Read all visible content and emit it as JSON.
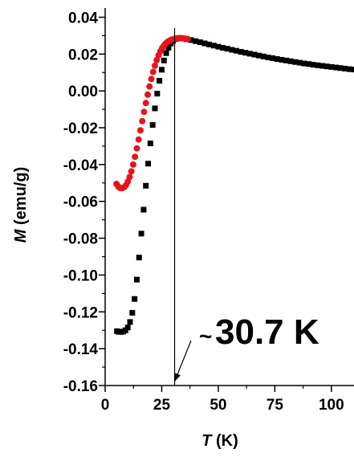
{
  "chart_data": {
    "type": "scatter",
    "xlabel": {
      "symbol": "T",
      "unit": " (K)"
    },
    "ylabel": {
      "symbol": "M",
      "unit": " (emu/g)"
    },
    "xlim": [
      0,
      110
    ],
    "ylim": [
      -0.16,
      0.045
    ],
    "x_ticks": [
      0,
      25,
      50,
      75,
      100
    ],
    "x_tick_labels": [
      "0",
      "25",
      "50",
      "75",
      "100"
    ],
    "y_ticks": [
      0.04,
      0.02,
      0.0,
      -0.02,
      -0.04,
      -0.06,
      -0.08,
      -0.1,
      -0.12,
      -0.14,
      -0.16
    ],
    "y_tick_labels": [
      "0.04",
      "0.02",
      "0.00",
      "-0.02",
      "-0.04",
      "-0.06",
      "-0.08",
      "-0.10",
      "-0.12",
      "-0.14",
      "-0.16"
    ],
    "grid": false,
    "legend": "none",
    "annotations": [
      {
        "text": "~30.7 K",
        "points_to_x": 30.7
      }
    ],
    "vline_x": 30.7,
    "series": [
      {
        "marker": "square",
        "color": "#000000",
        "points": [
          [
            5.2,
            -0.1305
          ],
          [
            6.0,
            -0.1308
          ],
          [
            7.0,
            -0.1309
          ],
          [
            8.0,
            -0.1307
          ],
          [
            9.0,
            -0.13
          ],
          [
            10.0,
            -0.1285
          ],
          [
            11.0,
            -0.1255
          ],
          [
            12.0,
            -0.1205
          ],
          [
            13.0,
            -0.113
          ],
          [
            14.0,
            -0.1025
          ],
          [
            15.0,
            -0.0905
          ],
          [
            16.0,
            -0.0775
          ],
          [
            17.0,
            -0.0645
          ],
          [
            18.0,
            -0.0515
          ],
          [
            19.0,
            -0.0395
          ],
          [
            20.0,
            -0.0285
          ],
          [
            21.0,
            -0.0185
          ],
          [
            22.0,
            -0.0095
          ],
          [
            23.0,
            -0.0015
          ],
          [
            24.0,
            0.0055
          ],
          [
            25.0,
            0.0115
          ],
          [
            26.0,
            0.0165
          ],
          [
            27.0,
            0.0205
          ],
          [
            28.0,
            0.0235
          ],
          [
            29.0,
            0.0258
          ],
          [
            30.0,
            0.0272
          ],
          [
            31.0,
            0.0281
          ],
          [
            32.0,
            0.0285
          ],
          [
            33.0,
            0.0286
          ],
          [
            34.0,
            0.0285
          ],
          [
            36.0,
            0.0281
          ],
          [
            38.0,
            0.0276
          ],
          [
            40.0,
            0.027
          ],
          [
            42.0,
            0.0264
          ],
          [
            44.0,
            0.0258
          ],
          [
            46.0,
            0.0252
          ],
          [
            48.0,
            0.0246
          ],
          [
            50.0,
            0.024
          ],
          [
            52.0,
            0.0234
          ],
          [
            54.0,
            0.0229
          ],
          [
            56.0,
            0.0223
          ],
          [
            58.0,
            0.0218
          ],
          [
            60.0,
            0.0212
          ],
          [
            62.0,
            0.0207
          ],
          [
            64.0,
            0.0202
          ],
          [
            66.0,
            0.0197
          ],
          [
            68.0,
            0.0192
          ],
          [
            70.0,
            0.0187
          ],
          [
            72.0,
            0.0182
          ],
          [
            74.0,
            0.0178
          ],
          [
            76.0,
            0.0173
          ],
          [
            78.0,
            0.0169
          ],
          [
            80.0,
            0.0165
          ],
          [
            82.0,
            0.0161
          ],
          [
            84.0,
            0.0157
          ],
          [
            86.0,
            0.0153
          ],
          [
            88.0,
            0.0149
          ],
          [
            90.0,
            0.0146
          ],
          [
            92.0,
            0.0142
          ],
          [
            94.0,
            0.0139
          ],
          [
            96.0,
            0.0136
          ],
          [
            98.0,
            0.0133
          ],
          [
            100.0,
            0.013
          ],
          [
            102.0,
            0.0127
          ],
          [
            104.0,
            0.0124
          ],
          [
            106.0,
            0.0121
          ],
          [
            108.0,
            0.0118
          ],
          [
            110.0,
            0.0116
          ]
        ]
      },
      {
        "marker": "circle",
        "color": "#e8141b",
        "points": [
          [
            5.0,
            -0.0505
          ],
          [
            5.8,
            -0.052
          ],
          [
            6.6,
            -0.0527
          ],
          [
            7.5,
            -0.0528
          ],
          [
            8.4,
            -0.0523
          ],
          [
            9.2,
            -0.0512
          ],
          [
            10.0,
            -0.0493
          ],
          [
            10.8,
            -0.0468
          ],
          [
            11.6,
            -0.0437
          ],
          [
            12.4,
            -0.04
          ],
          [
            13.2,
            -0.0358
          ],
          [
            14.0,
            -0.0312
          ],
          [
            14.8,
            -0.0264
          ],
          [
            15.6,
            -0.0214
          ],
          [
            16.4,
            -0.0164
          ],
          [
            17.2,
            -0.0114
          ],
          [
            18.0,
            -0.0066
          ],
          [
            18.8,
            -0.002
          ],
          [
            19.6,
            0.0024
          ],
          [
            20.4,
            0.0065
          ],
          [
            21.2,
            0.0103
          ],
          [
            22.0,
            0.0137
          ],
          [
            22.8,
            0.0167
          ],
          [
            23.6,
            0.0193
          ],
          [
            24.4,
            0.0215
          ],
          [
            25.2,
            0.0233
          ],
          [
            26.0,
            0.0247
          ],
          [
            26.8,
            0.0258
          ],
          [
            27.6,
            0.0266
          ],
          [
            28.4,
            0.0272
          ],
          [
            29.2,
            0.0277
          ],
          [
            30.0,
            0.0281
          ],
          [
            31.0,
            0.0284
          ],
          [
            32.0,
            0.0286
          ],
          [
            33.0,
            0.0287
          ],
          [
            34.0,
            0.0286
          ],
          [
            35.0,
            0.0285
          ],
          [
            36.5,
            0.0282
          ]
        ]
      }
    ]
  }
}
